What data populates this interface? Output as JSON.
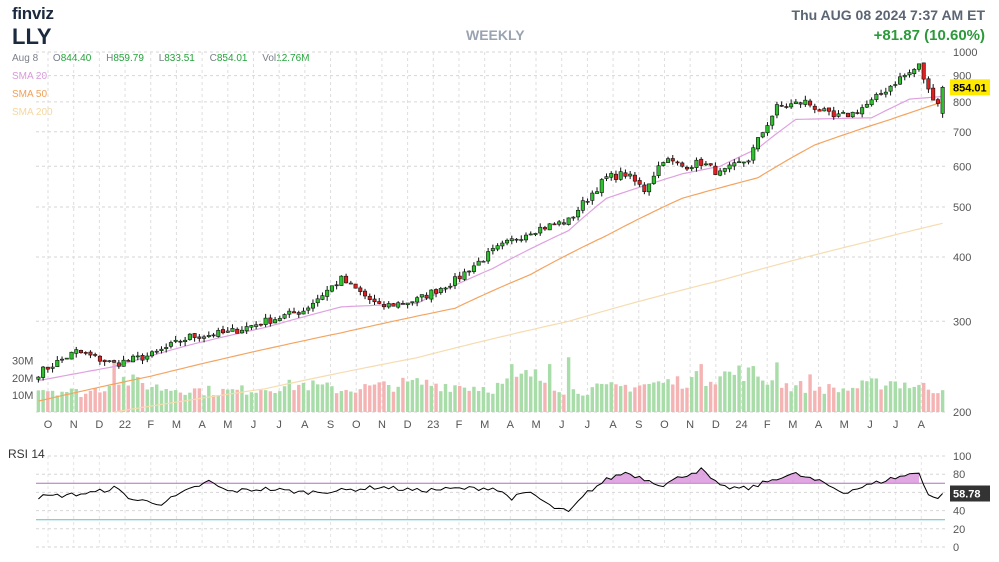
{
  "header": {
    "logo": "finviz",
    "ticker": "LLY",
    "period": "WEEKLY",
    "datetime": "Thu AUG 08 2024 7:37 AM ET",
    "change": "+81.87 (10.60%)"
  },
  "ohlc": {
    "date": "Aug 8",
    "open_label": "O",
    "open": "844.40",
    "high_label": "H",
    "high": "859.79",
    "low_label": "L",
    "low": "833.51",
    "close_label": "C",
    "close": "854.01",
    "vol_label": "Vol",
    "vol": "12.76M"
  },
  "legend": {
    "sma20": "SMA 20",
    "sma50": "SMA 50",
    "sma200": "SMA 200"
  },
  "colors": {
    "up": "#2fc02f",
    "down": "#e02020",
    "vol_up": "#a8dca8",
    "vol_down": "#f5b4b4",
    "sma20": "#e0a0e0",
    "sma50": "#f4a460",
    "sma200": "#f6dcb0",
    "price_label_bg": "#ffea00",
    "rsi_line": "#000000",
    "rsi_fill": "#d58ad9",
    "rsi_upper": "#b070c0",
    "rsi_lower": "#5bc0c8"
  },
  "chart_data": [
    {
      "type": "candlestick",
      "interval": "weekly",
      "ylim": [
        200,
        1000
      ],
      "y_ticks": [
        200,
        300,
        400,
        500,
        600,
        700,
        800,
        900,
        1000
      ],
      "y_scale": "log",
      "x_labels": [
        "O",
        "N",
        "D",
        "22",
        "F",
        "M",
        "A",
        "M",
        "J",
        "J",
        "A",
        "S",
        "O",
        "N",
        "D",
        "23",
        "F",
        "M",
        "A",
        "M",
        "J",
        "J",
        "A",
        "S",
        "O",
        "N",
        "D",
        "24",
        "F",
        "M",
        "A",
        "M",
        "J",
        "J",
        "A"
      ],
      "last_price_label": "854.01",
      "anchors": [
        [
          0,
          238
        ],
        [
          8,
          262
        ],
        [
          16,
          248
        ],
        [
          24,
          258
        ],
        [
          32,
          280
        ],
        [
          40,
          285
        ],
        [
          48,
          300
        ],
        [
          56,
          315
        ],
        [
          64,
          362
        ],
        [
          72,
          320
        ],
        [
          80,
          330
        ],
        [
          88,
          360
        ],
        [
          96,
          410
        ],
        [
          104,
          450
        ],
        [
          112,
          470
        ],
        [
          116,
          520
        ],
        [
          120,
          570
        ],
        [
          124,
          580
        ],
        [
          128,
          540
        ],
        [
          132,
          620
        ],
        [
          136,
          600
        ],
        [
          140,
          610
        ],
        [
          144,
          580
        ],
        [
          150,
          620
        ],
        [
          156,
          780
        ],
        [
          162,
          800
        ],
        [
          168,
          745
        ],
        [
          172,
          760
        ],
        [
          176,
          800
        ],
        [
          182,
          890
        ],
        [
          184,
          910
        ],
        [
          186,
          940
        ],
        [
          188,
          840
        ],
        [
          190,
          800
        ],
        [
          191,
          854
        ]
      ],
      "sma20_anchors": [
        [
          0,
          230
        ],
        [
          16,
          245
        ],
        [
          32,
          270
        ],
        [
          48,
          292
        ],
        [
          64,
          320
        ],
        [
          80,
          325
        ],
        [
          96,
          380
        ],
        [
          112,
          450
        ],
        [
          120,
          520
        ],
        [
          136,
          580
        ],
        [
          144,
          600
        ],
        [
          152,
          650
        ],
        [
          160,
          740
        ],
        [
          176,
          745
        ],
        [
          184,
          810
        ],
        [
          191,
          820
        ]
      ],
      "sma50_anchors": [
        [
          0,
          210
        ],
        [
          24,
          235
        ],
        [
          48,
          265
        ],
        [
          64,
          285
        ],
        [
          88,
          318
        ],
        [
          104,
          370
        ],
        [
          120,
          440
        ],
        [
          136,
          520
        ],
        [
          152,
          570
        ],
        [
          164,
          660
        ],
        [
          180,
          740
        ],
        [
          191,
          800
        ]
      ],
      "sma200_anchors": [
        [
          16,
          200
        ],
        [
          48,
          222
        ],
        [
          80,
          255
        ],
        [
          112,
          300
        ],
        [
          144,
          360
        ],
        [
          176,
          430
        ],
        [
          191,
          465
        ]
      ],
      "volume_ylim_m": [
        0,
        40
      ],
      "volume_ticks": [
        "10M",
        "20M",
        "30M"
      ],
      "volume_anchors_m": [
        [
          0,
          14
        ],
        [
          10,
          11
        ],
        [
          18,
          19
        ],
        [
          26,
          14
        ],
        [
          40,
          12
        ],
        [
          56,
          16
        ],
        [
          64,
          13
        ],
        [
          80,
          17
        ],
        [
          96,
          14
        ],
        [
          104,
          22
        ],
        [
          112,
          12
        ],
        [
          120,
          14
        ],
        [
          136,
          18
        ],
        [
          150,
          24
        ],
        [
          156,
          16
        ],
        [
          170,
          13
        ],
        [
          180,
          18
        ],
        [
          186,
          15
        ],
        [
          191,
          12.76
        ]
      ],
      "volume_spikes": [
        [
          16,
          29
        ],
        [
          100,
          28
        ],
        [
          108,
          28
        ],
        [
          112,
          32
        ],
        [
          140,
          28
        ],
        [
          150,
          26
        ],
        [
          156,
          29
        ],
        [
          163,
          22
        ]
      ]
    },
    {
      "type": "line",
      "title": "RSI 14",
      "ylim": [
        0,
        100
      ],
      "y_ticks": [
        0,
        20,
        40,
        60,
        80,
        100
      ],
      "upper_band": 70,
      "lower_band": 30,
      "last_value_label": "58.78",
      "anchors": [
        [
          0,
          55
        ],
        [
          6,
          57
        ],
        [
          12,
          60
        ],
        [
          16,
          65
        ],
        [
          20,
          52
        ],
        [
          26,
          48
        ],
        [
          32,
          63
        ],
        [
          36,
          72
        ],
        [
          40,
          61
        ],
        [
          48,
          64
        ],
        [
          56,
          60
        ],
        [
          64,
          62
        ],
        [
          72,
          66
        ],
        [
          80,
          62
        ],
        [
          88,
          64
        ],
        [
          96,
          65
        ],
        [
          100,
          54
        ],
        [
          104,
          60
        ],
        [
          108,
          45
        ],
        [
          112,
          38
        ],
        [
          116,
          60
        ],
        [
          120,
          74
        ],
        [
          124,
          82
        ],
        [
          128,
          75
        ],
        [
          132,
          68
        ],
        [
          136,
          78
        ],
        [
          140,
          85
        ],
        [
          144,
          66
        ],
        [
          150,
          64
        ],
        [
          156,
          76
        ],
        [
          160,
          80
        ],
        [
          166,
          70
        ],
        [
          170,
          60
        ],
        [
          174,
          66
        ],
        [
          180,
          75
        ],
        [
          186,
          82
        ],
        [
          188,
          58
        ],
        [
          190,
          52
        ],
        [
          191,
          58.78
        ]
      ]
    }
  ]
}
